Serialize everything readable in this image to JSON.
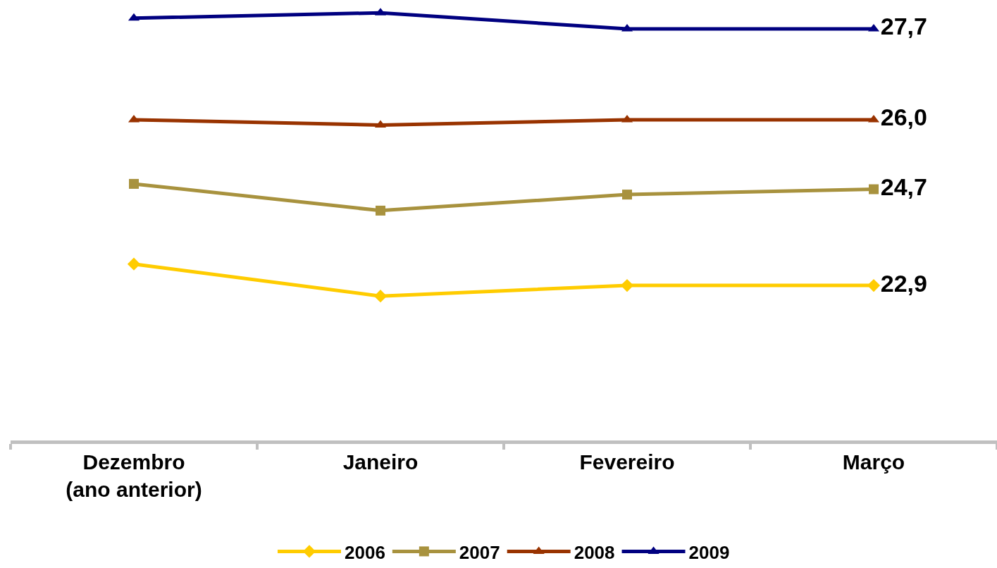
{
  "chart_data": {
    "type": "line",
    "categories": [
      "Dezembro\n(ano anterior)",
      "Janeiro",
      "Fevereiro",
      "Março"
    ],
    "ylim": [
      20,
      28.24
    ],
    "grid": false,
    "legend": "bottom",
    "line_style": "solid",
    "series": [
      {
        "name": "2006",
        "color": "#ffcc00",
        "marker": "diamond",
        "values": [
          23.3,
          22.7,
          22.9,
          22.9
        ],
        "value_labels": [
          null,
          null,
          null,
          "22,9"
        ]
      },
      {
        "name": "2007",
        "color": "#a8923e",
        "marker": "square",
        "values": [
          24.8,
          24.3,
          24.6,
          24.7
        ],
        "value_labels": [
          null,
          null,
          null,
          "24,7"
        ]
      },
      {
        "name": "2008",
        "color": "#993300",
        "marker": "triangle",
        "values": [
          26.0,
          25.9,
          26.0,
          26.0
        ],
        "value_labels": [
          null,
          null,
          null,
          "26,0"
        ]
      },
      {
        "name": "2009",
        "color": "#000080",
        "marker": "triangle",
        "values": [
          27.9,
          28.0,
          27.7,
          27.7
        ],
        "value_labels": [
          null,
          null,
          null,
          "27,7"
        ]
      }
    ]
  }
}
